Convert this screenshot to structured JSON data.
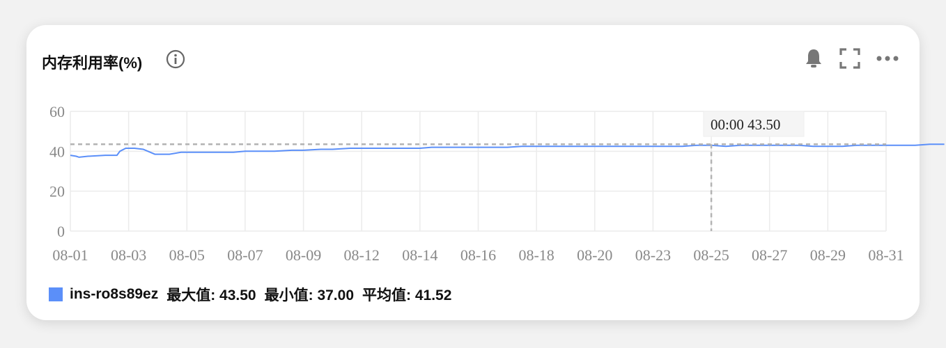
{
  "panel": {
    "title": "内存利用率(%)",
    "icons": [
      "info-icon",
      "bell-icon",
      "fullscreen-icon",
      "more-icon"
    ]
  },
  "legend": {
    "series_name": "ins-ro8s89ez",
    "max_label": "最大值: 43.50",
    "min_label": "最小值: 37.00",
    "avg_label": "平均值: 41.52"
  },
  "tooltip": {
    "text": "00:00 43.50"
  },
  "colors": {
    "series": "#5b8ff9",
    "grid": "#ebebeb",
    "crosshair": "#b3b3b3"
  },
  "chart_data": {
    "type": "line",
    "ylim": [
      0,
      60
    ],
    "yticks": [
      "0",
      "20",
      "40",
      "60"
    ],
    "xticks": [
      "08-01",
      "08-03",
      "08-05",
      "08-07",
      "08-09",
      "08-12",
      "08-14",
      "08-16",
      "08-18",
      "08-20",
      "08-23",
      "08-25",
      "08-27",
      "08-29",
      "08-31"
    ],
    "grid": true,
    "legend": "bottom-left",
    "series": [
      {
        "name": "ins-ro8s89ez",
        "x": [
          0,
          0.2,
          0.3,
          0.6,
          1.2,
          1.6,
          1.7,
          1.9,
          2.2,
          2.5,
          2.9,
          3.0,
          3.4,
          3.8,
          4.0,
          4.3,
          5.0,
          5.6,
          6.0,
          6.5,
          7.0,
          7.6,
          8.0,
          8.6,
          9.0,
          9.6,
          10.0,
          10.5,
          11.0,
          11.5,
          12.0,
          12.4,
          13.0,
          13.5,
          14.0,
          14.6,
          15.0,
          15.5,
          16.0,
          16.5,
          17.0,
          17.5,
          18.0,
          18.5,
          19.0,
          19.4,
          20.0,
          20.5,
          21.0,
          21.5,
          22.0,
          22.5,
          23.0,
          23.5,
          24.0,
          24.5,
          25.0,
          25.5,
          26.0,
          26.5,
          27.0,
          27.5,
          28.0,
          28.5,
          29.0,
          29.5,
          30.0
        ],
        "y": [
          38.0,
          37.5,
          37.0,
          37.5,
          38.0,
          38.0,
          40.0,
          41.5,
          41.5,
          41.0,
          38.5,
          38.5,
          38.5,
          39.5,
          39.5,
          39.5,
          39.5,
          39.5,
          40.0,
          40.0,
          40.0,
          40.5,
          40.5,
          41.0,
          41.0,
          41.5,
          41.5,
          41.5,
          41.5,
          41.5,
          41.5,
          42.0,
          42.0,
          42.0,
          42.0,
          42.0,
          42.0,
          42.5,
          42.5,
          42.5,
          42.5,
          42.5,
          42.5,
          42.5,
          42.5,
          42.5,
          42.5,
          42.5,
          42.5,
          43.0,
          43.0,
          42.5,
          43.0,
          43.0,
          43.0,
          43.0,
          43.0,
          42.5,
          42.5,
          42.5,
          43.0,
          43.0,
          43.0,
          43.0,
          43.0,
          43.5,
          43.5
        ]
      }
    ]
  }
}
